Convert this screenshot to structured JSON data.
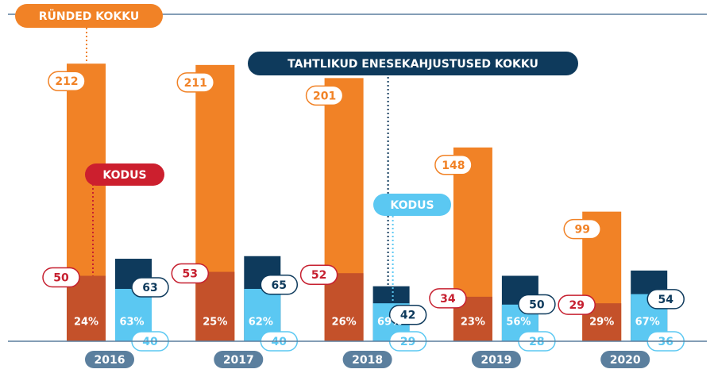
{
  "chart_data": {
    "type": "bar",
    "annotations": {
      "total_attacks": "RÜNDED KOKKU",
      "total_selfharm": "TAHTLIKUD ENESEKAHJUSTUSED KOKKU",
      "home_attacks": "KODUS",
      "home_selfharm": "KODUS"
    },
    "categories": [
      "2016",
      "2017",
      "2018",
      "2019",
      "2020"
    ],
    "ylim": [
      0,
      260
    ],
    "series": [
      {
        "color": "#f18226",
        "values": [
          212,
          211,
          201,
          148,
          99
        ]
      },
      {
        "color": "#c4512a",
        "values": [
          50,
          53,
          52,
          34,
          29
        ]
      },
      {
        "color": "#ffffff",
        "values": [
          24,
          25,
          26,
          23,
          29
        ],
        "value_labels": [
          "24%",
          "25%",
          "26%",
          "23%",
          "29%"
        ]
      },
      {
        "color": "#0e3a5c",
        "values": [
          63,
          65,
          42,
          50,
          54
        ]
      },
      {
        "color": "#5bc8f2",
        "values": [
          40,
          40,
          29,
          28,
          36
        ]
      },
      {
        "color": "#ffffff",
        "values": [
          63,
          62,
          69,
          56,
          67
        ],
        "value_labels": [
          "63%",
          "62%",
          "69%",
          "56%",
          "67%"
        ]
      }
    ]
  }
}
